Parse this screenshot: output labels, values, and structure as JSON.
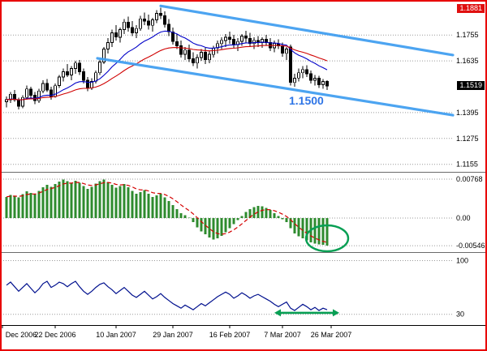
{
  "frame": {
    "border_color": "#e80000",
    "background": "#ffffff"
  },
  "main_chart": {
    "high_marker": {
      "text": "1.1881",
      "bg": "#e01010",
      "fg": "#ffffff"
    },
    "current_marker": {
      "text": "1.1519",
      "bg": "#000000",
      "fg": "#ffffff"
    },
    "note": {
      "text": "1.1500",
      "color": "#2e75e6"
    }
  },
  "chart_data": [
    {
      "type": "candlestick",
      "x_axis_labels": [
        {
          "index": -1,
          "label": "Dec 2006"
        },
        {
          "index": 12,
          "label": "22 Dec 2006"
        },
        {
          "index": 27,
          "label": "10 Jan 2007"
        },
        {
          "index": 41,
          "label": "29 Jan 2007"
        },
        {
          "index": 55,
          "label": "16 Feb 2007"
        },
        {
          "index": 68,
          "label": "7 Mar 2007"
        },
        {
          "index": 80,
          "label": "26 Mar 2007"
        }
      ],
      "y_ticks": [
        1.1755,
        1.1635,
        1.1395,
        1.1275,
        1.1155
      ],
      "ylim": [
        1.112,
        1.191
      ],
      "high_price": 1.1881,
      "last_price": 1.1519,
      "candle_up_fill": "#ffffff",
      "candle_down_fill": "#000000",
      "ohlc": [
        [
          1.1445,
          1.147,
          1.142,
          1.1455
        ],
        [
          1.1455,
          1.149,
          1.144,
          1.148
        ],
        [
          1.148,
          1.15,
          1.1445,
          1.1455
        ],
        [
          1.1455,
          1.1465,
          1.141,
          1.1425
        ],
        [
          1.1425,
          1.1475,
          1.1415,
          1.1465
        ],
        [
          1.1465,
          1.152,
          1.1455,
          1.1505
        ],
        [
          1.1505,
          1.1515,
          1.146,
          1.1475
        ],
        [
          1.1475,
          1.149,
          1.1435,
          1.145
        ],
        [
          1.145,
          1.1505,
          1.144,
          1.1495
        ],
        [
          1.1495,
          1.1545,
          1.1485,
          1.153
        ],
        [
          1.153,
          1.155,
          1.149,
          1.15
        ],
        [
          1.15,
          1.1515,
          1.1455,
          1.147
        ],
        [
          1.147,
          1.153,
          1.1465,
          1.152
        ],
        [
          1.152,
          1.157,
          1.151,
          1.156
        ],
        [
          1.156,
          1.16,
          1.154,
          1.1585
        ],
        [
          1.1585,
          1.162,
          1.156,
          1.157
        ],
        [
          1.157,
          1.161,
          1.1545,
          1.16
        ],
        [
          1.16,
          1.1635,
          1.1575,
          1.1625
        ],
        [
          1.1625,
          1.164,
          1.157,
          1.1585
        ],
        [
          1.1585,
          1.16,
          1.153,
          1.1545
        ],
        [
          1.1545,
          1.156,
          1.1495,
          1.151
        ],
        [
          1.151,
          1.1555,
          1.15,
          1.154
        ],
        [
          1.154,
          1.159,
          1.153,
          1.158
        ],
        [
          1.158,
          1.164,
          1.157,
          1.163
        ],
        [
          1.163,
          1.17,
          1.162,
          1.169
        ],
        [
          1.169,
          1.174,
          1.167,
          1.172
        ],
        [
          1.172,
          1.178,
          1.17,
          1.1765
        ],
        [
          1.1765,
          1.18,
          1.173,
          1.1745
        ],
        [
          1.1745,
          1.179,
          1.172,
          1.178
        ],
        [
          1.178,
          1.183,
          1.176,
          1.1815
        ],
        [
          1.1815,
          1.184,
          1.177,
          1.179
        ],
        [
          1.179,
          1.182,
          1.175,
          1.1765
        ],
        [
          1.1765,
          1.18,
          1.174,
          1.1785
        ],
        [
          1.1785,
          1.1845,
          1.1775,
          1.183
        ],
        [
          1.183,
          1.186,
          1.18,
          1.182
        ],
        [
          1.182,
          1.185,
          1.178,
          1.18
        ],
        [
          1.18,
          1.1835,
          1.177,
          1.1825
        ],
        [
          1.1825,
          1.187,
          1.181,
          1.1855
        ],
        [
          1.1855,
          1.1881,
          1.183,
          1.1845
        ],
        [
          1.1845,
          1.1865,
          1.179,
          1.1805
        ],
        [
          1.1805,
          1.183,
          1.175,
          1.177
        ],
        [
          1.177,
          1.179,
          1.171,
          1.1725
        ],
        [
          1.1725,
          1.176,
          1.169,
          1.1705
        ],
        [
          1.1705,
          1.173,
          1.165,
          1.1665
        ],
        [
          1.1665,
          1.17,
          1.164,
          1.1685
        ],
        [
          1.1685,
          1.171,
          1.163,
          1.1645
        ],
        [
          1.1645,
          1.1675,
          1.161,
          1.1625
        ],
        [
          1.1625,
          1.1665,
          1.16,
          1.165
        ],
        [
          1.165,
          1.169,
          1.1635,
          1.1675
        ],
        [
          1.1675,
          1.1695,
          1.162,
          1.164
        ],
        [
          1.164,
          1.168,
          1.1625,
          1.1665
        ],
        [
          1.1665,
          1.1705,
          1.165,
          1.1695
        ],
        [
          1.1695,
          1.173,
          1.167,
          1.1715
        ],
        [
          1.1715,
          1.1745,
          1.169,
          1.173
        ],
        [
          1.173,
          1.176,
          1.17,
          1.1745
        ],
        [
          1.1745,
          1.177,
          1.1715,
          1.1735
        ],
        [
          1.1735,
          1.1755,
          1.1695,
          1.171
        ],
        [
          1.171,
          1.174,
          1.168,
          1.1725
        ],
        [
          1.1725,
          1.176,
          1.1705,
          1.175
        ],
        [
          1.175,
          1.1775,
          1.172,
          1.174
        ],
        [
          1.174,
          1.1765,
          1.17,
          1.1715
        ],
        [
          1.1715,
          1.1745,
          1.169,
          1.173
        ],
        [
          1.173,
          1.175,
          1.17,
          1.172
        ],
        [
          1.172,
          1.1745,
          1.1695,
          1.1735
        ],
        [
          1.1735,
          1.1755,
          1.1705,
          1.172
        ],
        [
          1.172,
          1.174,
          1.168,
          1.1695
        ],
        [
          1.1695,
          1.173,
          1.1675,
          1.1715
        ],
        [
          1.1715,
          1.1735,
          1.169,
          1.1705
        ],
        [
          1.1705,
          1.172,
          1.1655,
          1.167
        ],
        [
          1.167,
          1.17,
          1.164,
          1.169
        ],
        [
          1.17,
          1.171,
          1.152,
          1.1535
        ],
        [
          1.1535,
          1.1575,
          1.1515,
          1.1555
        ],
        [
          1.1555,
          1.16,
          1.154,
          1.158
        ],
        [
          1.158,
          1.161,
          1.1555,
          1.1595
        ],
        [
          1.1595,
          1.1615,
          1.156,
          1.1575
        ],
        [
          1.1575,
          1.159,
          1.153,
          1.1545
        ],
        [
          1.1545,
          1.157,
          1.152,
          1.1555
        ],
        [
          1.1555,
          1.1565,
          1.151,
          1.1525
        ],
        [
          1.1525,
          1.155,
          1.1505,
          1.154
        ],
        [
          1.154,
          1.1545,
          1.15,
          1.1519
        ]
      ],
      "moving_averages": [
        {
          "period": 16,
          "color": "#0000c8"
        },
        {
          "period": 34,
          "color": "#d00000"
        }
      ],
      "trend_channel": {
        "color": "#3d9df0",
        "upper": {
          "i1": 38,
          "p1": 1.189,
          "i2": 110,
          "p2": 1.1662
        },
        "lower": {
          "i1": 22.4,
          "p1": 1.1647,
          "i2": 110,
          "p2": 1.1383
        }
      }
    },
    {
      "type": "bar",
      "name": "macd-histogram",
      "bar_color": "#2e8b2e",
      "signal_color": "#d40000",
      "signal_period": 6,
      "y_ticks": [
        0.00768,
        0,
        -0.00546
      ],
      "y_tick_labels": [
        "0.00768",
        "0.00",
        "-0.00546"
      ],
      "ylim": [
        -0.00672,
        0.00896
      ],
      "values": [
        0.0042,
        0.0046,
        0.0044,
        0.0041,
        0.0047,
        0.0053,
        0.005,
        0.0047,
        0.0054,
        0.0061,
        0.0066,
        0.0062,
        0.0067,
        0.0072,
        0.0076,
        0.0073,
        0.0069,
        0.0074,
        0.007,
        0.0063,
        0.0058,
        0.0062,
        0.0068,
        0.0073,
        0.0076,
        0.0071,
        0.0066,
        0.006,
        0.0063,
        0.0067,
        0.0061,
        0.0054,
        0.0048,
        0.0051,
        0.0055,
        0.0048,
        0.0042,
        0.0045,
        0.0048,
        0.0041,
        0.0034,
        0.0026,
        0.0018,
        0.001,
        0.0006,
        0.0001,
        -0.0008,
        -0.0018,
        -0.0026,
        -0.0032,
        -0.0038,
        -0.0042,
        -0.004,
        -0.0035,
        -0.0028,
        -0.002,
        -0.0012,
        -0.0004,
        0.0004,
        0.0012,
        0.0018,
        0.0022,
        0.0024,
        0.0023,
        0.002,
        0.0016,
        0.001,
        0.0004,
        -0.0002,
        -0.0008,
        -0.002,
        -0.003,
        -0.0036,
        -0.004,
        -0.0044,
        -0.0048,
        -0.005,
        -0.0052,
        -0.0053,
        -0.0054
      ],
      "ellipse_annotation": {
        "center_index": 79,
        "value": -0.004,
        "rx": 26,
        "ry": 16,
        "color": "#089f54"
      }
    },
    {
      "type": "line",
      "name": "oscillator",
      "line_color": "#00108e",
      "y_ticks": [
        100,
        30
      ],
      "y_tick_labels": [
        "100",
        "30"
      ],
      "ylim": [
        16,
        110
      ],
      "values": [
        68,
        72,
        66,
        60,
        65,
        70,
        64,
        58,
        63,
        70,
        73,
        65,
        68,
        72,
        70,
        66,
        70,
        73,
        66,
        60,
        56,
        60,
        65,
        69,
        71,
        66,
        62,
        57,
        61,
        65,
        60,
        55,
        52,
        56,
        60,
        55,
        50,
        53,
        57,
        52,
        48,
        44,
        41,
        38,
        42,
        39,
        36,
        40,
        44,
        41,
        45,
        49,
        53,
        56,
        59,
        56,
        51,
        54,
        58,
        55,
        51,
        54,
        56,
        53,
        50,
        47,
        43,
        40,
        43,
        46,
        38,
        35,
        39,
        43,
        40,
        36,
        39,
        35,
        38,
        36
      ],
      "arrow_annotation": {
        "from_index": 66,
        "to_index": 82,
        "level": 32,
        "color": "#089f54"
      }
    }
  ]
}
